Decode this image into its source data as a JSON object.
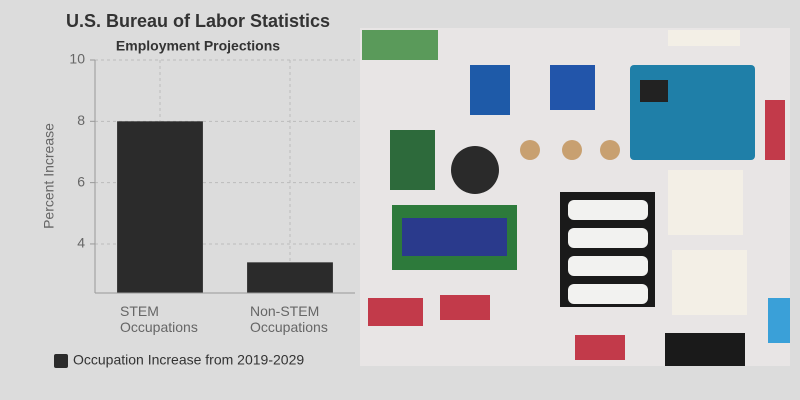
{
  "chart_data": {
    "type": "bar",
    "title": "U.S. Bureau of Labor Statistics",
    "subtitle": "Employment Projections",
    "y_label": "Percent Increase",
    "categories": [
      "STEM Occupations",
      "Non-STEM Occupations"
    ],
    "series": [
      {
        "name": "Occupation Increase from 2019-2029",
        "color": "#2b2b2b",
        "values": [
          8,
          3.4
        ]
      }
    ],
    "ylim": [
      2.4,
      10
    ],
    "yticks": [
      4,
      6,
      8,
      10
    ],
    "grid": true,
    "legend": "bottom-left"
  }
}
